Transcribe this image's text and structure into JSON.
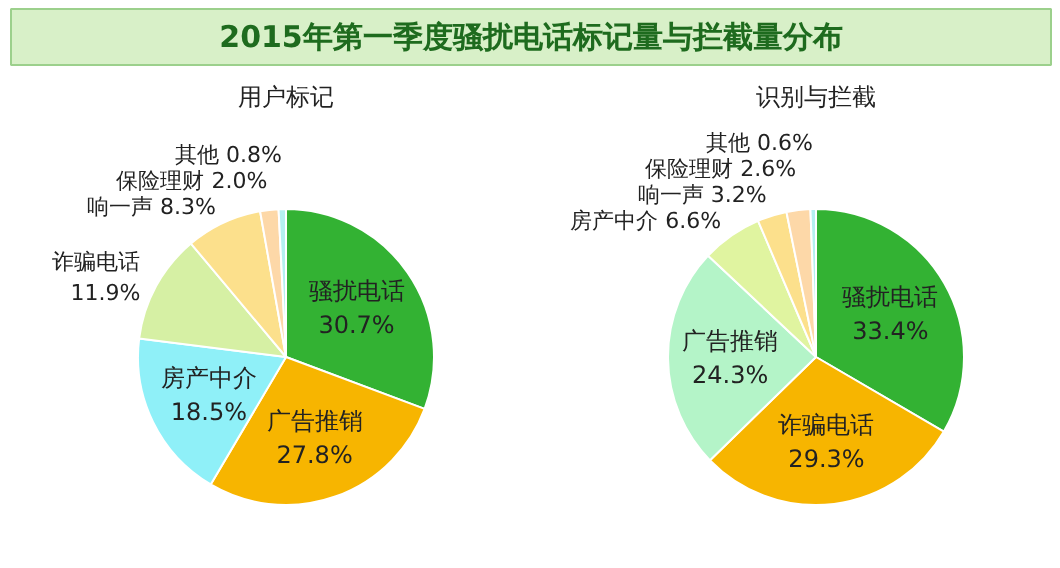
{
  "chart_data": [
    {
      "type": "pie",
      "title": "2015年第一季度骚扰电话标记量与拦截量分布",
      "subtitle": "用户标记",
      "categories": [
        "骚扰电话",
        "广告推销",
        "房产中介",
        "诈骗电话",
        "响一声",
        "保险理财",
        "其他"
      ],
      "values": [
        30.7,
        27.8,
        18.5,
        11.9,
        8.3,
        2.0,
        0.8
      ],
      "value_labels": [
        "30.7%",
        "27.8%",
        "18.5%",
        "11.9%",
        "8.3%",
        "2.0%",
        "0.8%"
      ],
      "colors": [
        "#33b233",
        "#f7b500",
        "#8ff0f8",
        "#d6f0a4",
        "#fce08c",
        "#fdd8a8",
        "#b4f0f0"
      ]
    },
    {
      "type": "pie",
      "subtitle": "识别与拦截",
      "categories": [
        "骚扰电话",
        "诈骗电话",
        "广告推销",
        "房产中介",
        "响一声",
        "保险理财",
        "其他"
      ],
      "values": [
        33.4,
        29.3,
        24.3,
        6.6,
        3.2,
        2.6,
        0.6
      ],
      "value_labels": [
        "33.4%",
        "29.3%",
        "24.3%",
        "6.6%",
        "3.2%",
        "2.6%",
        "0.6%"
      ],
      "colors": [
        "#33b233",
        "#f7b500",
        "#b4f4c8",
        "#e0f4a0",
        "#fce08c",
        "#fdd8a8",
        "#b4f0f0"
      ]
    }
  ]
}
